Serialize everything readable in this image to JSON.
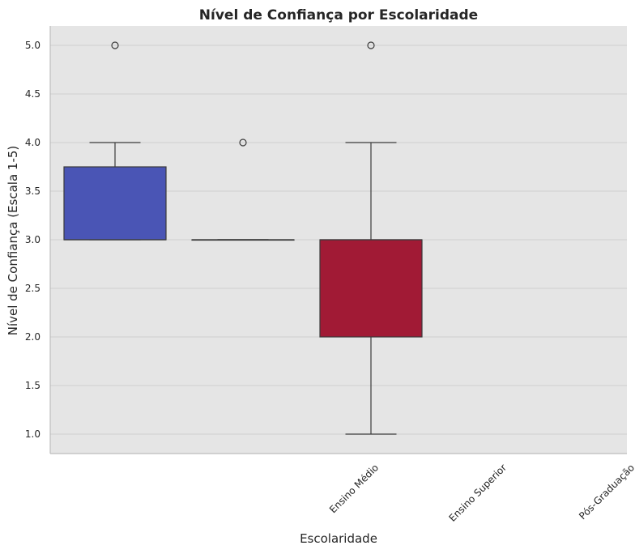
{
  "chart_data": {
    "type": "box",
    "title": "Nível de Confiança por Escolaridade",
    "xlabel": "Escolaridade",
    "ylabel": "Nível de Confiança (Escala 1-5)",
    "ylim": [
      0.8,
      5.2
    ],
    "yticks": [
      1.0,
      1.5,
      2.0,
      2.5,
      3.0,
      3.5,
      4.0,
      4.5,
      5.0
    ],
    "ytick_labels": [
      "1.0",
      "1.5",
      "2.0",
      "2.5",
      "3.0",
      "3.5",
      "4.0",
      "4.5",
      "5.0"
    ],
    "xtick_labels": [
      "Ensino Médio",
      "Ensino Superior",
      "Pós-Graduação"
    ],
    "grid": true,
    "background": "#e5e5e5",
    "boxes": [
      {
        "slot": 0,
        "q1": 3.0,
        "median": 3.0,
        "q3": 3.75,
        "whisker_low": 3.0,
        "whisker_high": 4.0,
        "outliers": [
          5.0
        ],
        "color": "#4a55b5"
      },
      {
        "slot": 1,
        "q1": 3.0,
        "median": 3.0,
        "q3": 3.0,
        "whisker_low": 3.0,
        "whisker_high": 3.0,
        "outliers": [
          4.0
        ],
        "color": "#7b7fc8"
      },
      {
        "slot": 2,
        "q1": 2.0,
        "median": 3.0,
        "q3": 3.0,
        "whisker_low": 1.0,
        "whisker_high": 4.0,
        "outliers": [
          5.0
        ],
        "color": "#a11a35"
      }
    ]
  }
}
